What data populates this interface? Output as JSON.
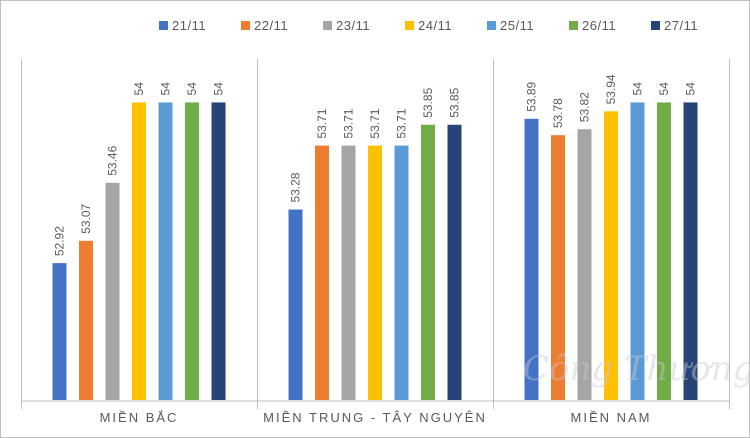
{
  "chart_data": {
    "type": "bar",
    "title": "",
    "xlabel": "",
    "ylabel": "",
    "ylim": [
      52,
      54.05
    ],
    "grid": false,
    "legend_position": "top",
    "categories": [
      "MIỀN BẮC",
      "MIỀN TRUNG - TÂY NGUYÊN",
      "MIỀN NAM"
    ],
    "series": [
      {
        "name": "21/11",
        "color": "#4472C4",
        "values": [
          52.92,
          53.28,
          53.89
        ],
        "labels": [
          "52.92",
          "53.28",
          "53.89"
        ]
      },
      {
        "name": "22/11",
        "color": "#ED7D31",
        "values": [
          53.07,
          53.71,
          53.78
        ],
        "labels": [
          "53.07",
          "53.71",
          "53.78"
        ]
      },
      {
        "name": "23/11",
        "color": "#A5A5A5",
        "values": [
          53.46,
          53.71,
          53.82
        ],
        "labels": [
          "53.46",
          "53.71",
          "53.82"
        ]
      },
      {
        "name": "24/11",
        "color": "#FFC000",
        "values": [
          54,
          53.71,
          53.94
        ],
        "labels": [
          "54",
          "53.71",
          "53.94"
        ]
      },
      {
        "name": "25/11",
        "color": "#5B9BD5",
        "values": [
          54,
          53.71,
          54
        ],
        "labels": [
          "54",
          "53.71",
          "54"
        ]
      },
      {
        "name": "26/11",
        "color": "#70AD47",
        "values": [
          54,
          53.85,
          54
        ],
        "labels": [
          "54",
          "53.85",
          "54"
        ]
      },
      {
        "name": "27/11",
        "color": "#264478",
        "values": [
          54,
          53.85,
          54
        ],
        "labels": [
          "54",
          "53.85",
          "54"
        ]
      }
    ]
  },
  "watermark": "Công Thương"
}
